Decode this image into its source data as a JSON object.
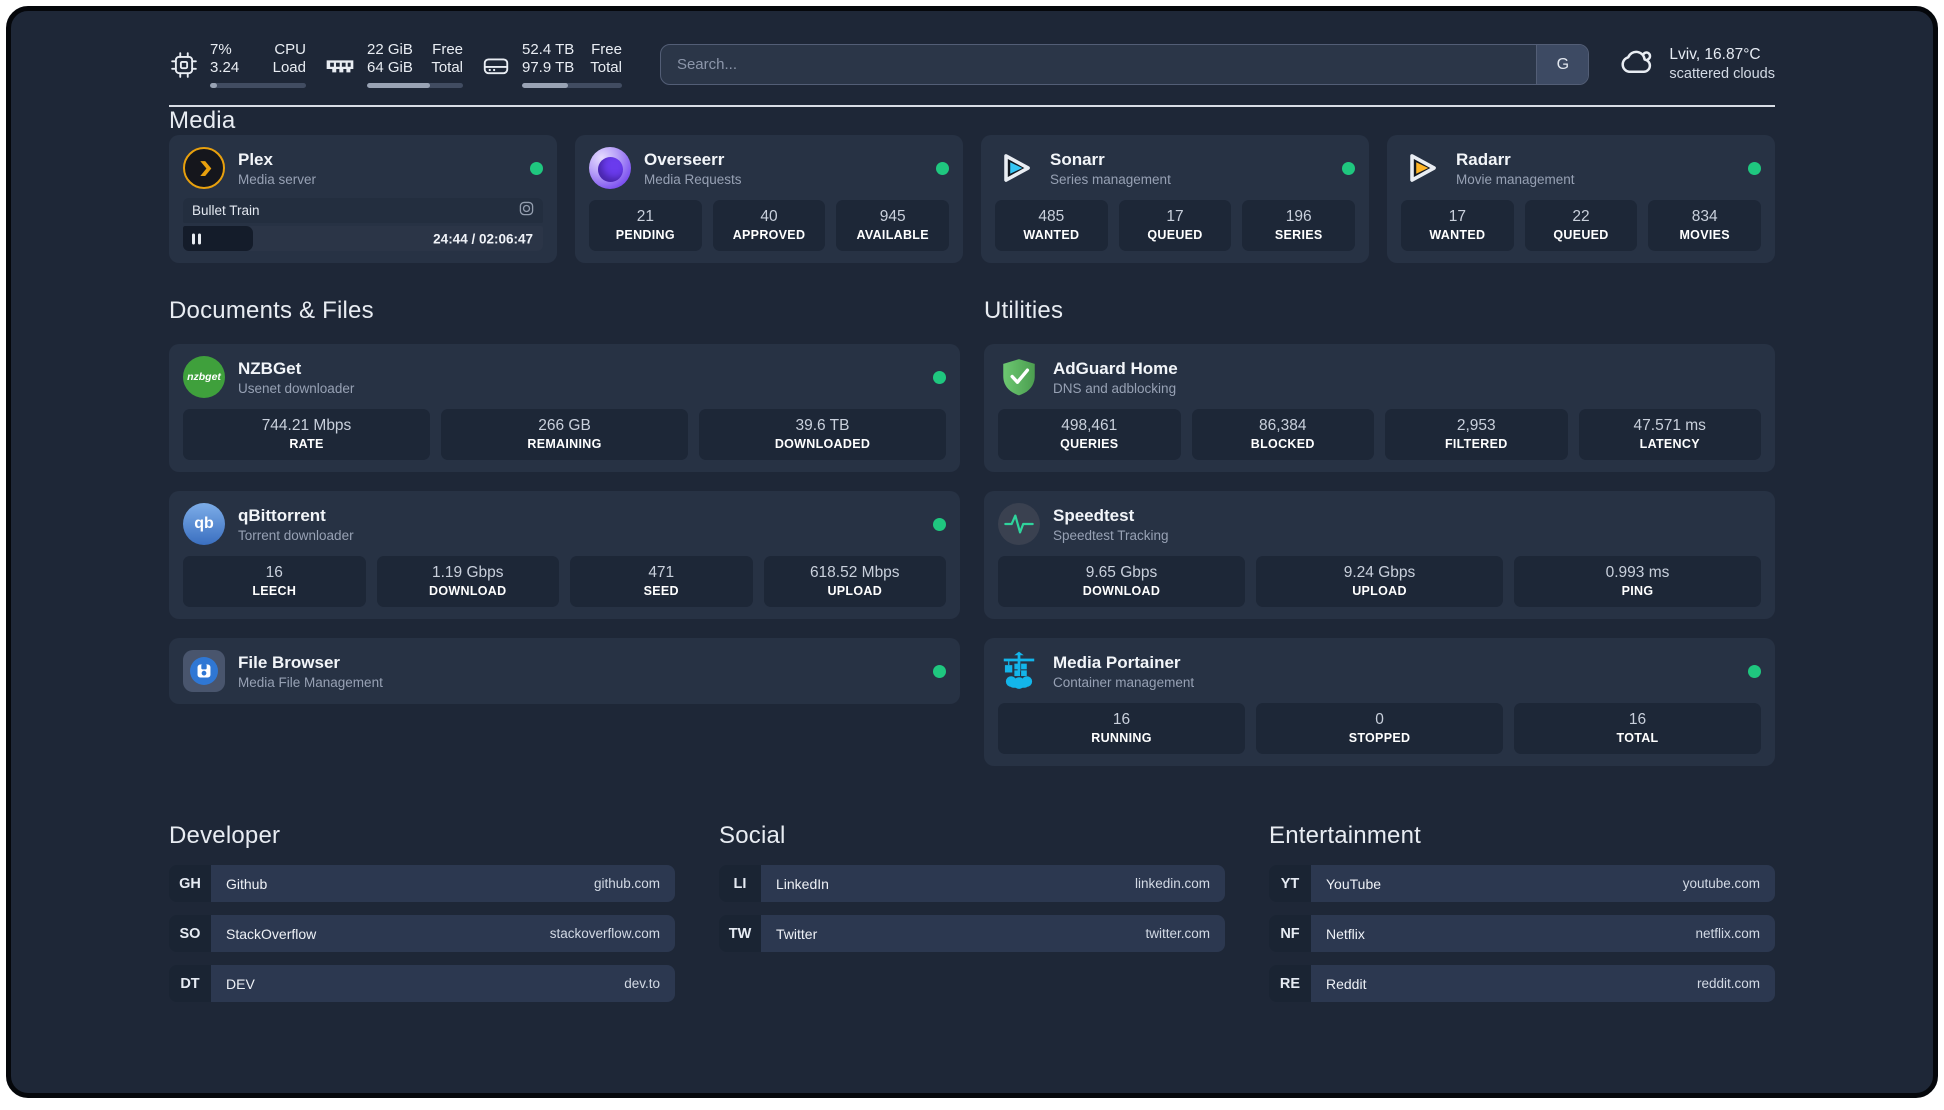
{
  "topbar": {
    "cpu": {
      "value1": "7%",
      "value2": "3.24",
      "label1": "CPU",
      "label2": "Load",
      "progress": 7
    },
    "ram": {
      "value1": "22 GiB",
      "value2": "64 GiB",
      "label1": "Free",
      "label2": "Total",
      "progress": 66
    },
    "disk": {
      "value1": "52.4 TB",
      "value2": "97.9 TB",
      "label1": "Free",
      "label2": "Total",
      "progress": 46
    },
    "search": {
      "placeholder": "Search...",
      "button_label": "G"
    },
    "weather": {
      "location": "Lviv, 16.87°C",
      "condition": "scattered clouds"
    }
  },
  "media": {
    "heading": "Media",
    "plex": {
      "title": "Plex",
      "subtitle": "Media server",
      "now_playing": "Bullet Train",
      "time": "24:44 / 02:06:47",
      "progress": 19.5
    },
    "overseerr": {
      "title": "Overseerr",
      "subtitle": "Media Requests",
      "stats": [
        {
          "value": "21",
          "label": "PENDING"
        },
        {
          "value": "40",
          "label": "APPROVED"
        },
        {
          "value": "945",
          "label": "AVAILABLE"
        }
      ]
    },
    "sonarr": {
      "title": "Sonarr",
      "subtitle": "Series management",
      "stats": [
        {
          "value": "485",
          "label": "WANTED"
        },
        {
          "value": "17",
          "label": "QUEUED"
        },
        {
          "value": "196",
          "label": "SERIES"
        }
      ]
    },
    "radarr": {
      "title": "Radarr",
      "subtitle": "Movie management",
      "stats": [
        {
          "value": "17",
          "label": "WANTED"
        },
        {
          "value": "22",
          "label": "QUEUED"
        },
        {
          "value": "834",
          "label": "MOVIES"
        }
      ]
    }
  },
  "documents": {
    "heading": "Documents & Files",
    "nzbget": {
      "title": "NZBGet",
      "subtitle": "Usenet downloader",
      "logo_text": "nzbget",
      "stats": [
        {
          "value": "744.21 Mbps",
          "label": "RATE"
        },
        {
          "value": "266 GB",
          "label": "REMAINING"
        },
        {
          "value": "39.6 TB",
          "label": "DOWNLOADED"
        }
      ]
    },
    "qbittorrent": {
      "title": "qBittorrent",
      "subtitle": "Torrent downloader",
      "logo_text": "qb",
      "stats": [
        {
          "value": "16",
          "label": "LEECH"
        },
        {
          "value": "1.19 Gbps",
          "label": "DOWNLOAD"
        },
        {
          "value": "471",
          "label": "SEED"
        },
        {
          "value": "618.52 Mbps",
          "label": "UPLOAD"
        }
      ]
    },
    "filebrowser": {
      "title": "File Browser",
      "subtitle": "Media File Management"
    }
  },
  "utilities": {
    "heading": "Utilities",
    "adguard": {
      "title": "AdGuard Home",
      "subtitle": "DNS and adblocking",
      "stats": [
        {
          "value": "498,461",
          "label": "QUERIES"
        },
        {
          "value": "86,384",
          "label": "BLOCKED"
        },
        {
          "value": "2,953",
          "label": "FILTERED"
        },
        {
          "value": "47.571 ms",
          "label": "LATENCY"
        }
      ]
    },
    "speedtest": {
      "title": "Speedtest",
      "subtitle": "Speedtest Tracking",
      "stats": [
        {
          "value": "9.65 Gbps",
          "label": "DOWNLOAD"
        },
        {
          "value": "9.24 Gbps",
          "label": "UPLOAD"
        },
        {
          "value": "0.993 ms",
          "label": "PING"
        }
      ]
    },
    "portainer": {
      "title": "Media Portainer",
      "subtitle": "Container management",
      "stats": [
        {
          "value": "16",
          "label": "RUNNING"
        },
        {
          "value": "0",
          "label": "STOPPED"
        },
        {
          "value": "16",
          "label": "TOTAL"
        }
      ]
    }
  },
  "bookmarks": {
    "developer": {
      "heading": "Developer",
      "items": [
        {
          "abbr": "GH",
          "name": "Github",
          "url": "github.com"
        },
        {
          "abbr": "SO",
          "name": "StackOverflow",
          "url": "stackoverflow.com"
        },
        {
          "abbr": "DT",
          "name": "DEV",
          "url": "dev.to"
        }
      ]
    },
    "social": {
      "heading": "Social",
      "items": [
        {
          "abbr": "LI",
          "name": "LinkedIn",
          "url": "linkedin.com"
        },
        {
          "abbr": "TW",
          "name": "Twitter",
          "url": "twitter.com"
        }
      ]
    },
    "entertainment": {
      "heading": "Entertainment",
      "items": [
        {
          "abbr": "YT",
          "name": "YouTube",
          "url": "youtube.com"
        },
        {
          "abbr": "NF",
          "name": "Netflix",
          "url": "netflix.com"
        },
        {
          "abbr": "RE",
          "name": "Reddit",
          "url": "reddit.com"
        }
      ]
    }
  },
  "colors": {
    "status_green": "#1fc77f",
    "plex_orange": "#e8a00d",
    "sonarr_blue": "#35c5f4",
    "radarr_yellow": "#ffb526",
    "portainer_blue": "#13b5ea",
    "background": "#1e2737",
    "card": "#273244"
  }
}
